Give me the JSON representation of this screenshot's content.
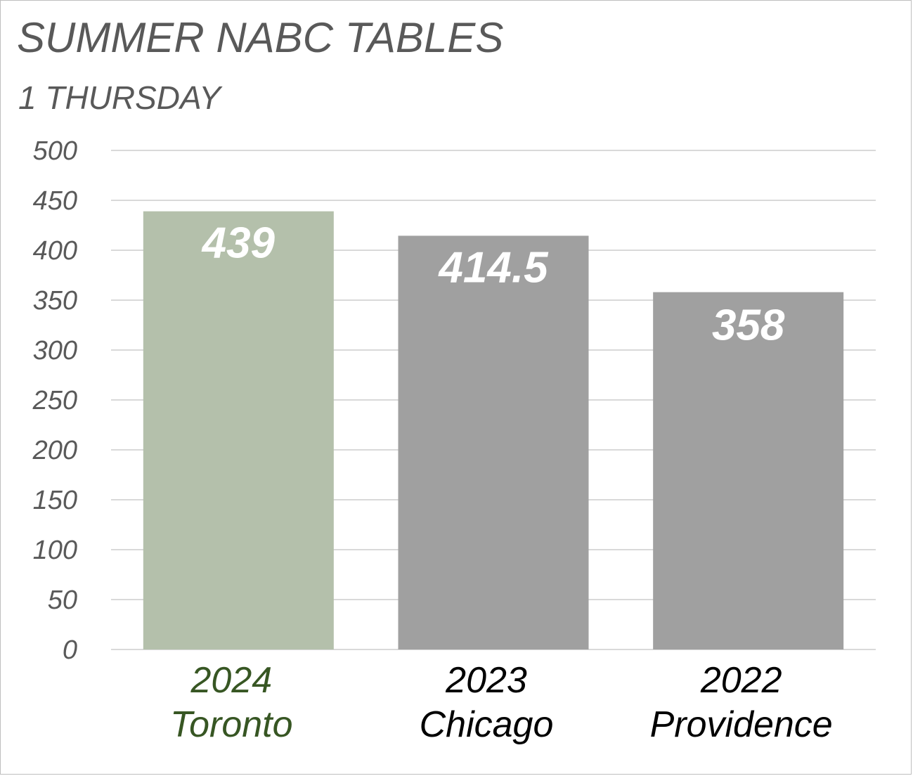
{
  "chart_data": {
    "type": "bar",
    "title": "SUMMER NABC TABLES",
    "subtitle": "1 THURSDAY",
    "categories": [
      {
        "year": "2024",
        "city": "Toronto"
      },
      {
        "year": "2023",
        "city": "Chicago"
      },
      {
        "year": "2022",
        "city": "Providence"
      }
    ],
    "values": [
      439,
      414.5,
      358
    ],
    "data_labels": [
      "439",
      "414.5",
      "358"
    ],
    "bar_colors": [
      "#b4c0ab",
      "#a0a0a0",
      "#a0a0a0"
    ],
    "category_label_colors": [
      "#375623",
      "#000000",
      "#000000"
    ],
    "ylim": [
      0,
      500
    ],
    "yticks": [
      "0",
      "50",
      "100",
      "150",
      "200",
      "250",
      "300",
      "350",
      "400",
      "450",
      "500"
    ],
    "grid": true,
    "gridline_color": "#d9d9d9",
    "legend": "none"
  }
}
